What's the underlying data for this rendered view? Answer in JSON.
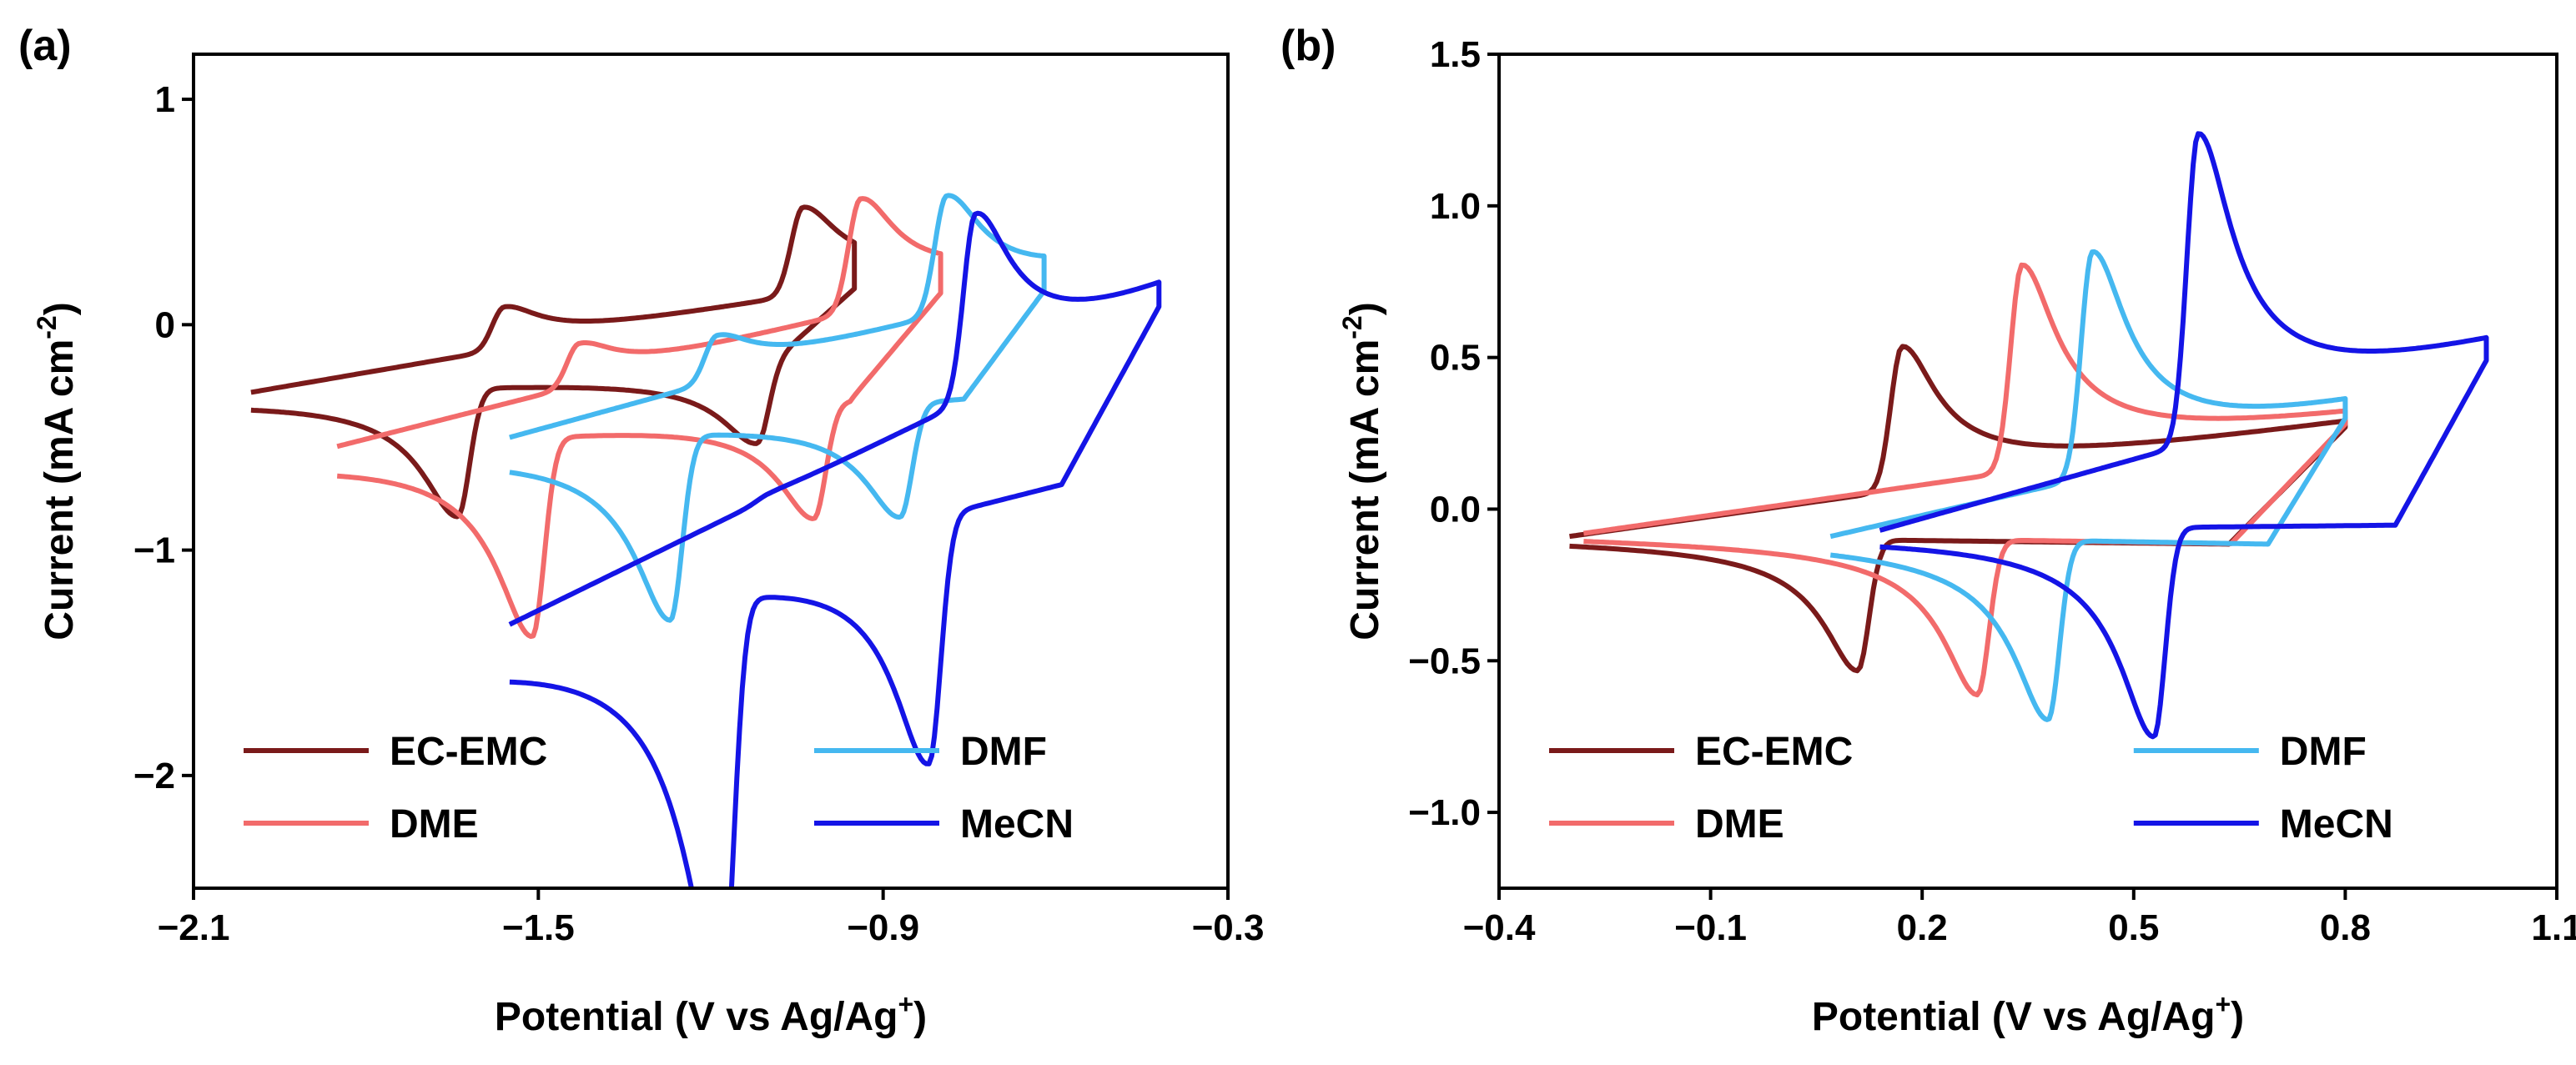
{
  "chart_data": [
    {
      "type": "line",
      "panel_label": "(a)",
      "title": "",
      "xlabel": "Potential (V vs Ag/Ag+)",
      "ylabel": "Current (mA cm-2)",
      "xlim": [
        -2.1,
        -0.3
      ],
      "ylim": [
        -2.5,
        1.2
      ],
      "xticks": [
        "−2.1",
        "−1.5",
        "−0.9",
        "−0.3"
      ],
      "xtick_values": [
        -2.1,
        -1.5,
        -0.9,
        -0.3
      ],
      "yticks": [
        "1",
        "0",
        "−1",
        "−2"
      ],
      "ytick_values": [
        1,
        0,
        -1,
        -2
      ],
      "legend": {
        "placement": "bottom"
      },
      "series": [
        {
          "name": "EC-EMC",
          "color": "#7a1a1a",
          "cv": {
            "e_start": -0.95,
            "e_low": -2.0,
            "e_high": -0.95,
            "couples": [
              {
                "e_half": -1.6,
                "ipa": 0.25,
                "ipc": -0.64,
                "width": 0.045
              },
              {
                "e_half": -1.08,
                "ipa": 0.45,
                "ipc": -0.4,
                "width": 0.045
              }
            ],
            "baseline_anodic": 0.16,
            "baseline_cathodic": -0.18,
            "tail": -0.3
          }
        },
        {
          "name": "DME",
          "color": "#f26b6b",
          "cv": {
            "e_start": -0.8,
            "e_low": -1.85,
            "e_high": -0.8,
            "couples": [
              {
                "e_half": -1.47,
                "ipa": 0.24,
                "ipc": -1.0,
                "width": 0.045
              },
              {
                "e_half": -0.98,
                "ipa": 0.55,
                "ipc": -0.63,
                "width": 0.045
              }
            ],
            "baseline_anodic": 0.14,
            "baseline_cathodic": -0.3,
            "tail": -0.54
          }
        },
        {
          "name": "DMF",
          "color": "#45b8f0",
          "cv": {
            "e_start": -0.62,
            "e_low": -1.55,
            "e_high": -0.62,
            "couples": [
              {
                "e_half": -1.23,
                "ipa": 0.26,
                "ipc": -0.94,
                "width": 0.045
              },
              {
                "e_half": -0.83,
                "ipa": 0.58,
                "ipc": -0.62,
                "width": 0.045
              }
            ],
            "baseline_anodic": 0.15,
            "baseline_cathodic": -0.3,
            "tail": -0.5
          }
        },
        {
          "name": "MeCN",
          "color": "#1414e6",
          "cv": {
            "e_start": -0.42,
            "e_low": -1.55,
            "e_high": -0.42,
            "couples": [
              {
                "e_half": -1.14,
                "ipa": 0.05,
                "ipc": -2.02,
                "width": 0.045
              },
              {
                "e_half": -0.78,
                "ipa": 0.84,
                "ipc": -1.33,
                "width": 0.045
              }
            ],
            "baseline_anodic": 0.08,
            "baseline_cathodic": -0.6,
            "tail": -1.33
          }
        }
      ]
    },
    {
      "type": "line",
      "panel_label": "(b)",
      "title": "",
      "xlabel": "Potential (V vs Ag/Ag+)",
      "ylabel": "Current (mA cm-2)",
      "xlim": [
        -0.4,
        1.1
      ],
      "ylim": [
        -1.25,
        1.5
      ],
      "xticks": [
        "−0.4",
        "−0.1",
        "0.2",
        "0.5",
        "0.8",
        "1.1"
      ],
      "xtick_values": [
        -0.4,
        -0.1,
        0.2,
        0.5,
        0.8,
        1.1
      ],
      "yticks": [
        "1.5",
        "1.0",
        "0.5",
        "0.0",
        "−0.5",
        "−1.0"
      ],
      "ytick_values": [
        1.5,
        1.0,
        0.5,
        0.0,
        -0.5,
        -1.0
      ],
      "legend": {
        "placement": "bottom"
      },
      "series": [
        {
          "name": "EC-EMC",
          "color": "#7a1a1a",
          "cv": {
            "e_low": -0.3,
            "e_high": 0.8,
            "couples": [
              {
                "e_half": 0.14,
                "ipa": 0.58,
                "ipc": -0.48,
                "width": 0.035
              }
            ],
            "baseline_anodic": 0.27,
            "baseline_cathodic": -0.12,
            "tail": -0.09
          }
        },
        {
          "name": "DME",
          "color": "#f26b6b",
          "cv": {
            "e_low": -0.28,
            "e_high": 0.8,
            "couples": [
              {
                "e_half": 0.31,
                "ipa": 0.79,
                "ipc": -0.56,
                "width": 0.035
              }
            ],
            "baseline_anodic": 0.28,
            "baseline_cathodic": -0.12,
            "tail": -0.08
          }
        },
        {
          "name": "DMF",
          "color": "#45b8f0",
          "cv": {
            "e_low": 0.07,
            "e_high": 0.8,
            "couples": [
              {
                "e_half": 0.41,
                "ipa": 0.86,
                "ipc": -0.64,
                "width": 0.035
              }
            ],
            "baseline_anodic": 0.3,
            "baseline_cathodic": -0.12,
            "tail": -0.09
          }
        },
        {
          "name": "MeCN",
          "color": "#1414e6",
          "cv": {
            "e_low": 0.14,
            "e_high": 1.0,
            "couples": [
              {
                "e_half": 0.56,
                "ipa": 1.21,
                "ipc": -0.71,
                "width": 0.035
              }
            ],
            "baseline_anodic": 0.49,
            "baseline_cathodic": -0.05,
            "tail": -0.07
          }
        }
      ]
    }
  ]
}
